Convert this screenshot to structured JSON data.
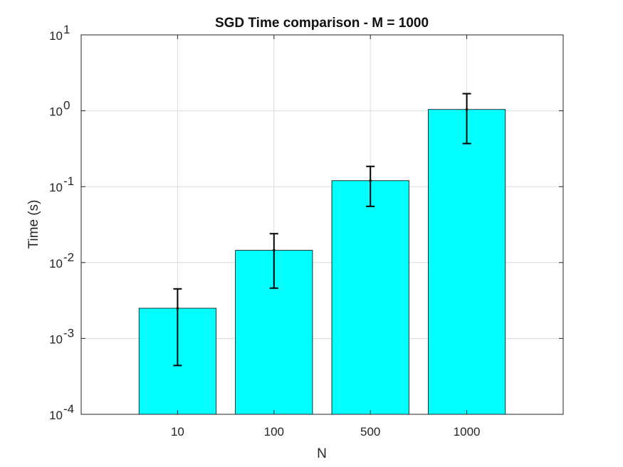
{
  "chart_data": {
    "type": "bar",
    "title": "SGD Time comparison - M = 1000",
    "xlabel": "N",
    "ylabel": "Time (s)",
    "categories": [
      "10",
      "100",
      "500",
      "1000"
    ],
    "values": [
      0.0025,
      0.0145,
      0.12,
      1.04
    ],
    "error_lower": [
      0.00044,
      0.0046,
      0.055,
      0.37
    ],
    "error_upper": [
      0.0045,
      0.024,
      0.185,
      1.68
    ],
    "yscale": "log",
    "ylim": [
      0.0001,
      10
    ],
    "yticks": [
      {
        "base": "10",
        "exp": "-4"
      },
      {
        "base": "10",
        "exp": "-3"
      },
      {
        "base": "10",
        "exp": "-2"
      },
      {
        "base": "10",
        "exp": "-1"
      },
      {
        "base": "10",
        "exp": "0"
      },
      {
        "base": "10",
        "exp": "1"
      }
    ],
    "grid": true,
    "bar_color": "#00ffff",
    "error_bar_color": "#000000"
  }
}
